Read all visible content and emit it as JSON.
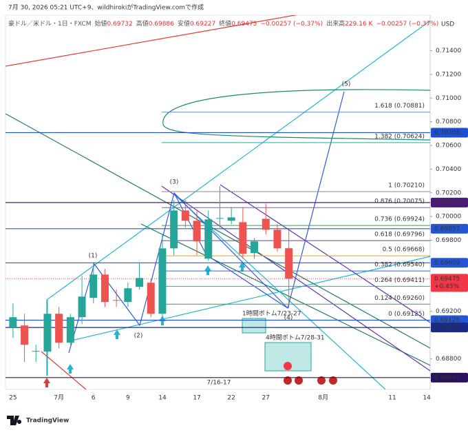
{
  "chart_data": {
    "type": "candlestick",
    "caption": "7月 30, 2026 05:21 UTC+9、wildhirokiがTradingView.comで作成",
    "header": {
      "symbol": "豪ドル／米ドル・1日・FXCM",
      "ohlc": [
        {
          "label": "始値",
          "value": "0.69732"
        },
        {
          "label": "高値",
          "value": "0.69886"
        },
        {
          "label": "安値",
          "value": "0.69227"
        },
        {
          "label": "終値",
          "value": "0.69475"
        }
      ],
      "change": "−0.00257 (−0.37%)",
      "volume_label": "出来高",
      "volume": "229.16 K",
      "volume_change": "−0.00257 (−0.37%)"
    },
    "currency": "USD",
    "logo": "TradingView",
    "categories": [
      "25",
      null,
      null,
      null,
      "7月",
      null,
      null,
      "6",
      null,
      null,
      "9",
      null,
      null,
      "14",
      null,
      null,
      "17",
      null,
      null,
      "22",
      null,
      null,
      "27",
      null,
      null,
      null,
      null,
      "8月",
      null,
      null,
      null,
      null,
      null,
      "11",
      null,
      null,
      "14"
    ],
    "open": [
      0.69063,
      0.6908,
      0.68859,
      0.68859,
      0.69179,
      0.68935,
      0.6915,
      0.69313,
      0.6951,
      0.69295,
      0.69278,
      0.69406,
      0.69441,
      0.69179,
      0.69731,
      0.70051,
      0.69964,
      0.69644,
      0.69981,
      0.69964,
      0.69952,
      0.69691,
      0.69981,
      0.69888,
      0.69732,
      null,
      null,
      null,
      null,
      null,
      null,
      null,
      null,
      null,
      null,
      null,
      null
    ],
    "high": [
      0.69266,
      0.69179,
      0.68917,
      0.69295,
      0.69237,
      0.69179,
      0.69499,
      0.69615,
      0.69557,
      0.69383,
      0.69441,
      0.69615,
      0.6947,
      0.69848,
      0.70138,
      0.70138,
      0.70051,
      0.70051,
      0.70255,
      0.7008,
      0.7008,
      0.69819,
      0.70109,
      0.69935,
      0.69886,
      null,
      null,
      null,
      null,
      null,
      null,
      null,
      null,
      null,
      null,
      null,
      null
    ],
    "low": [
      0.68976,
      0.68772,
      0.68772,
      0.68656,
      0.68888,
      0.68917,
      0.69092,
      0.69266,
      0.69237,
      0.69237,
      0.69237,
      0.69383,
      0.6915,
      0.6915,
      0.69673,
      0.69906,
      0.69673,
      0.69627,
      0.69906,
      0.69935,
      0.69644,
      0.69644,
      0.69848,
      0.69702,
      0.69227,
      null,
      null,
      null,
      null,
      null,
      null,
      null,
      null,
      null,
      null,
      null,
      null
    ],
    "close": [
      0.6915,
      0.68917,
      0.68865,
      0.69179,
      0.68935,
      0.6915,
      0.69324,
      0.6951,
      0.69278,
      0.6929,
      0.69394,
      0.69481,
      0.69179,
      0.69731,
      0.70051,
      0.69964,
      0.6979,
      0.69976,
      0.69987,
      0.69993,
      0.69685,
      0.6979,
      0.69888,
      0.69731,
      0.69475,
      null,
      null,
      null,
      null,
      null,
      null,
      null,
      null,
      null,
      null,
      null,
      null
    ],
    "up_color": "#26a69a",
    "down_color": "#ef5350",
    "ylim": [
      0.6854,
      0.717
    ],
    "yticks": [
      {
        "value": 0.714,
        "label": "0.71400"
      },
      {
        "value": 0.712,
        "label": "0.71200"
      },
      {
        "value": 0.71,
        "label": "0.71000"
      },
      {
        "value": 0.708,
        "label": "0.70800"
      },
      {
        "value": 0.706,
        "label": "0.70600"
      },
      {
        "value": 0.704,
        "label": "0.70400"
      },
      {
        "value": 0.702,
        "label": "0.70200"
      },
      {
        "value": 0.7,
        "label": "0.70000"
      },
      {
        "value": 0.698,
        "label": "0.69800"
      },
      {
        "value": 0.692,
        "label": "0.69200"
      },
      {
        "value": 0.688,
        "label": "0.68800"
      }
    ],
    "grid": false,
    "fib_levels": [
      {
        "label": "1.618 (0.70881)",
        "value": 0.70881,
        "color": "#5b8fd9"
      },
      {
        "label": "1.382 (0.70624)",
        "value": 0.70624,
        "color": "#26a69a"
      },
      {
        "label": "1 (0.70210)",
        "value": 0.7021,
        "color": "#8a8a8a"
      },
      {
        "label": "0.876 (0.70075)",
        "value": 0.70075,
        "color": "#7e57c2"
      },
      {
        "label": "0.736 (0.69924)",
        "value": 0.69924,
        "color": "#2e9e5e"
      },
      {
        "label": "0.618 (0.69796)",
        "value": 0.69796,
        "color": "#6a3d9a"
      },
      {
        "label": "0.5 (0.69668)",
        "value": 0.69668,
        "color": "#f59d0e"
      },
      {
        "label": "0.382 (0.69540)",
        "value": 0.6954,
        "color": "#2962ff"
      },
      {
        "label": "0.264 (0.69411)",
        "value": 0.69411,
        "color": "#26a69a"
      },
      {
        "label": "0.124 (0.69260)",
        "value": 0.6926,
        "color": "#2e9e5e"
      },
      {
        "label": "0 (0.69125)",
        "value": 0.69125,
        "color": "#5f8f8a"
      }
    ],
    "price_tags": [
      {
        "value": 0.70708,
        "color": "#1c4fd1"
      },
      {
        "value": 0.70118,
        "color": "#4a1a7a"
      },
      {
        "value": 0.69897,
        "color": "#2456d3"
      },
      {
        "value": 0.69609,
        "color": "#2456d3"
      },
      {
        "value": 0.69475,
        "color": "#f23645",
        "change": "+0.45%"
      },
      {
        "value": 0.69125,
        "color": "#2456d3"
      },
      {
        "value": 0.69063,
        "color": "#1a2a8a"
      },
      {
        "value": 0.6864,
        "label": "0.68640",
        "color": "#2a1060"
      }
    ],
    "annotations": [
      "(1)",
      "(2)",
      "(3)",
      "(4)",
      "(5)",
      "1時間ボトム7/23-27",
      "4時間ボトム7/28-31",
      "7/16-17"
    ]
  }
}
